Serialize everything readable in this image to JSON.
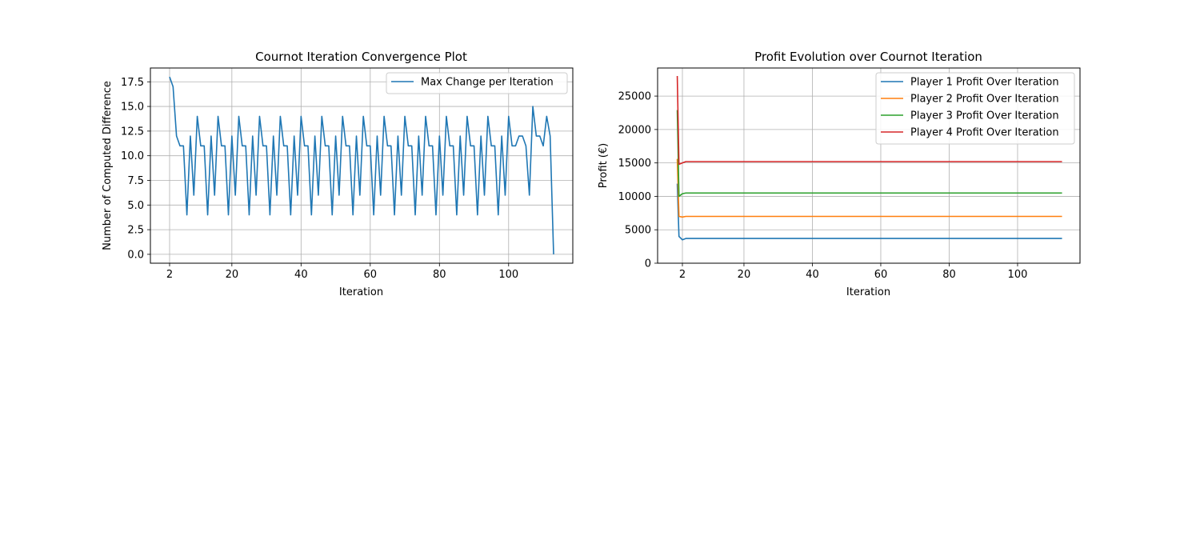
{
  "chart_data": [
    {
      "type": "line",
      "title": "Cournot Iteration Convergence Plot",
      "xlabel": "Iteration",
      "ylabel": "Number of Computed Difference",
      "xlim": [
        -3.55,
        118.55
      ],
      "ylim": [
        -0.9,
        18.9
      ],
      "xticks": [
        2,
        20,
        40,
        60,
        80,
        100
      ],
      "yticks": [
        0.0,
        2.5,
        5.0,
        7.5,
        10.0,
        12.5,
        15.0,
        17.5
      ],
      "ytick_labels": [
        "0.0",
        "2.5",
        "5.0",
        "7.5",
        "10.0",
        "12.5",
        "15.0",
        "17.5"
      ],
      "grid": true,
      "legend_position": "top-right",
      "x": [
        2,
        3,
        4,
        5,
        6,
        7,
        8,
        9,
        10,
        11,
        12,
        13,
        14,
        15,
        16,
        17,
        18,
        19,
        20,
        21,
        22,
        23,
        24,
        25,
        26,
        27,
        28,
        29,
        30,
        31,
        32,
        33,
        34,
        35,
        36,
        37,
        38,
        39,
        40,
        41,
        42,
        43,
        44,
        45,
        46,
        47,
        48,
        49,
        50,
        51,
        52,
        53,
        54,
        55,
        56,
        57,
        58,
        59,
        60,
        61,
        62,
        63,
        64,
        65,
        66,
        67,
        68,
        69,
        70,
        71,
        72,
        73,
        74,
        75,
        76,
        77,
        78,
        79,
        80,
        81,
        82,
        83,
        84,
        85,
        86,
        87,
        88,
        89,
        90,
        91,
        92,
        93,
        94,
        95,
        96,
        97,
        98,
        99,
        100,
        101,
        102,
        103,
        104,
        105,
        106,
        107,
        108,
        109,
        110,
        111,
        112,
        113
      ],
      "series": [
        {
          "name": "Max Change per Iteration",
          "color": "#1f77b4",
          "values": [
            18,
            17,
            12,
            11,
            11,
            4,
            12,
            6,
            14,
            11,
            11,
            4,
            12,
            6,
            14,
            11,
            11,
            4,
            12,
            6,
            14,
            11,
            11,
            4,
            12,
            6,
            14,
            11,
            11,
            4,
            12,
            6,
            14,
            11,
            11,
            4,
            12,
            6,
            14,
            11,
            11,
            4,
            12,
            6,
            14,
            11,
            11,
            4,
            12,
            6,
            14,
            11,
            11,
            4,
            12,
            6,
            14,
            11,
            11,
            4,
            12,
            6,
            14,
            11,
            11,
            4,
            12,
            6,
            14,
            11,
            11,
            4,
            12,
            6,
            14,
            11,
            11,
            4,
            12,
            6,
            14,
            11,
            11,
            4,
            12,
            6,
            14,
            11,
            11,
            4,
            12,
            6,
            14,
            11,
            11,
            4,
            12,
            6,
            14,
            11,
            11,
            12,
            12,
            11,
            6,
            15,
            12,
            12,
            11,
            14,
            12,
            0
          ]
        }
      ]
    },
    {
      "type": "line",
      "title": "Profit Evolution over Cournot Iteration",
      "xlabel": "Iteration",
      "ylabel": "Profit (€)",
      "xlim": [
        -5.25,
        118.25
      ],
      "ylim": [
        0,
        29200
      ],
      "xticks": [
        2,
        20,
        40,
        60,
        80,
        100
      ],
      "yticks": [
        0,
        5000,
        10000,
        15000,
        20000,
        25000
      ],
      "ytick_labels": [
        "0",
        "5000",
        "10000",
        "15000",
        "20000",
        "25000"
      ],
      "grid": true,
      "legend_position": "top-right",
      "series": [
        {
          "name": "Player 1 Profit Over Iteration",
          "color": "#1f77b4",
          "x": [
            0.5,
            1,
            2,
            3,
            113
          ],
          "values": [
            11900,
            4000,
            3500,
            3700,
            3700
          ]
        },
        {
          "name": "Player 2 Profit Over Iteration",
          "color": "#ff7f0e",
          "x": [
            0.5,
            1,
            2,
            3,
            113
          ],
          "values": [
            15600,
            7000,
            6900,
            7000,
            7000
          ]
        },
        {
          "name": "Player 3 Profit Over Iteration",
          "color": "#2ca02c",
          "x": [
            0.5,
            1,
            2,
            3,
            113
          ],
          "values": [
            22900,
            10000,
            10400,
            10500,
            10500
          ]
        },
        {
          "name": "Player 4 Profit Over Iteration",
          "color": "#d62728",
          "x": [
            0.5,
            1,
            2,
            3,
            113
          ],
          "values": [
            28000,
            14800,
            15000,
            15200,
            15200
          ]
        }
      ]
    }
  ]
}
